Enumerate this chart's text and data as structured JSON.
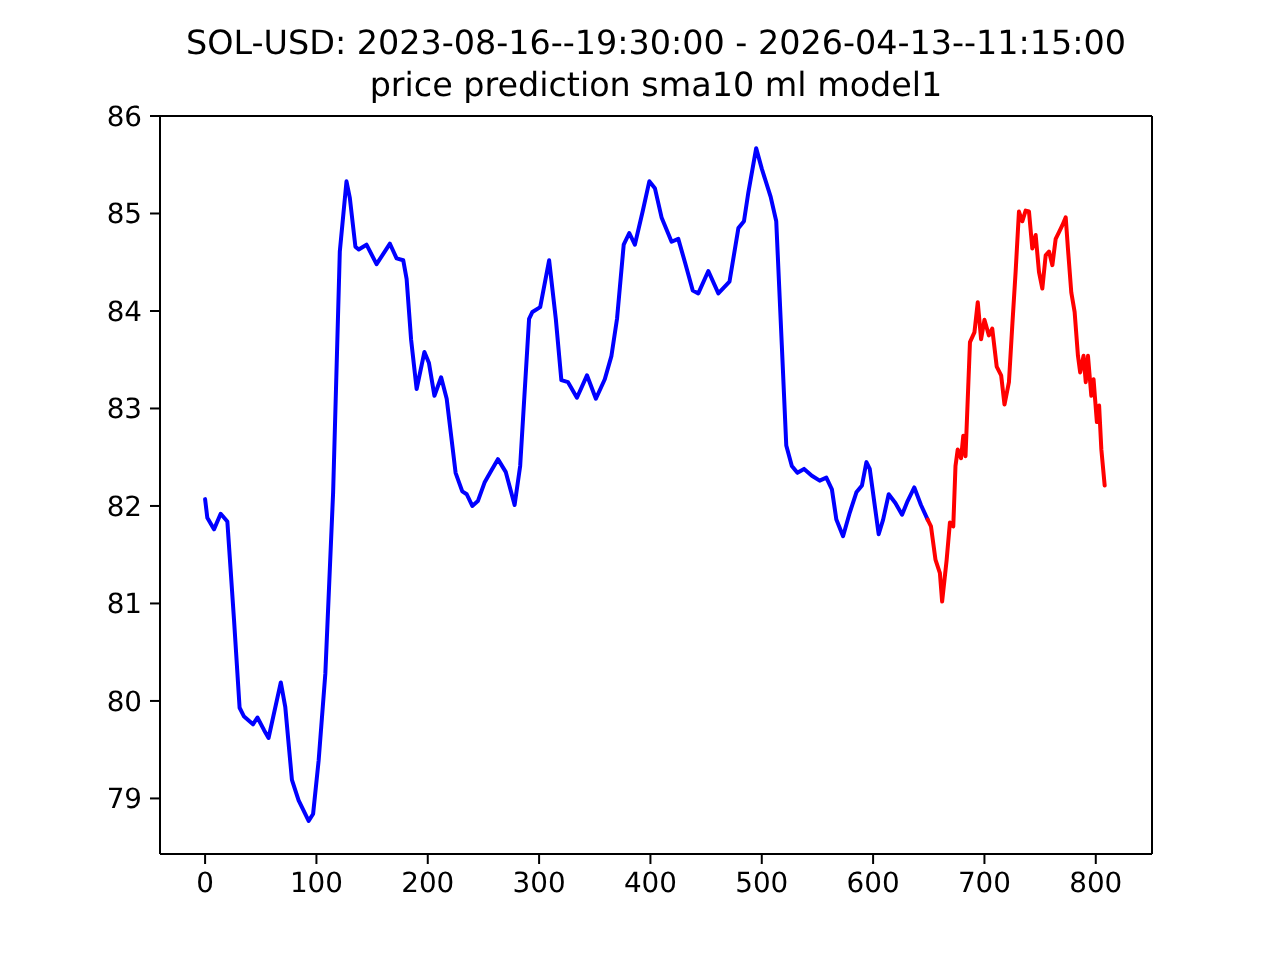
{
  "chart_data": {
    "type": "line",
    "title": "SOL-USD: 2023-08-16--19:30:00 - 2026-04-13--11:15:00",
    "subtitle": "price prediction sma10 ml model1",
    "xlim": [
      -40.5,
      850.5
    ],
    "xticks": [
      0,
      100,
      200,
      300,
      400,
      500,
      600,
      700,
      800
    ],
    "ylim": [
      78.43,
      86.0
    ],
    "yticks": [
      79,
      80,
      81,
      82,
      83,
      84,
      85,
      86
    ],
    "line_style": "solid",
    "series": [
      {
        "color": "#0000ff",
        "x": [
          0,
          2,
          8,
          14,
          20,
          26,
          31,
          35,
          43,
          47,
          53,
          57,
          68,
          72,
          78,
          84,
          93,
          97,
          102,
          108,
          115,
          121,
          127,
          130,
          135,
          138,
          145,
          154,
          166,
          172,
          178,
          181,
          185,
          190,
          197,
          201,
          206,
          212,
          217,
          225,
          231,
          235,
          240,
          245,
          251,
          257,
          263,
          270,
          278,
          283,
          291,
          294,
          301,
          309,
          315,
          320,
          326,
          334,
          343,
          351,
          359,
          365,
          370,
          376,
          381,
          386,
          393,
          399,
          404,
          410,
          419,
          425,
          431,
          438,
          443,
          452,
          461,
          471,
          479,
          484,
          488,
          495,
          500,
          508,
          513,
          518,
          522,
          527,
          532,
          538,
          545,
          552,
          558,
          563,
          567,
          573,
          579,
          585,
          590,
          594,
          597,
          605,
          609,
          614,
          620,
          626,
          631,
          637,
          643,
          649
        ],
        "values": [
          82.07,
          81.88,
          81.76,
          81.92,
          81.84,
          80.83,
          79.93,
          79.84,
          79.76,
          79.83,
          79.7,
          79.62,
          80.19,
          79.94,
          79.19,
          78.98,
          78.77,
          78.84,
          79.39,
          80.28,
          82.14,
          84.61,
          85.33,
          85.16,
          84.66,
          84.63,
          84.68,
          84.48,
          84.69,
          84.54,
          84.52,
          84.33,
          83.71,
          83.2,
          83.58,
          83.47,
          83.13,
          83.32,
          83.1,
          82.34,
          82.15,
          82.12,
          82.0,
          82.05,
          82.24,
          82.36,
          82.48,
          82.35,
          82.01,
          82.41,
          83.92,
          83.99,
          84.04,
          84.52,
          83.92,
          83.29,
          83.27,
          83.11,
          83.34,
          83.1,
          83.3,
          83.54,
          83.92,
          84.68,
          84.8,
          84.68,
          85.02,
          85.33,
          85.26,
          84.96,
          84.71,
          84.74,
          84.5,
          84.21,
          84.18,
          84.41,
          84.18,
          84.3,
          84.85,
          84.92,
          85.22,
          85.67,
          85.46,
          85.17,
          84.92,
          83.65,
          82.62,
          82.41,
          82.34,
          82.38,
          82.31,
          82.26,
          82.29,
          82.17,
          81.86,
          81.69,
          81.93,
          82.14,
          82.21,
          82.45,
          82.38,
          81.71,
          81.86,
          82.12,
          82.03,
          81.91,
          82.05,
          82.19,
          82.01,
          81.86
        ]
      },
      {
        "color": "#ff0000",
        "x": [
          649,
          652,
          656,
          660,
          662,
          666,
          669,
          672,
          674,
          676,
          679,
          681,
          683,
          687,
          691,
          694,
          697,
          700,
          704,
          707,
          711,
          715,
          718,
          722,
          725,
          728,
          731,
          734,
          737,
          740,
          743,
          746,
          749,
          752,
          755,
          758,
          761,
          764,
          767,
          770,
          773,
          775,
          778,
          781,
          784,
          786,
          789,
          791,
          793,
          796,
          798,
          801,
          803,
          805,
          808
        ],
        "values": [
          81.86,
          81.79,
          81.45,
          81.31,
          81.02,
          81.44,
          81.83,
          81.79,
          82.41,
          82.58,
          82.49,
          82.72,
          82.51,
          83.68,
          83.78,
          84.09,
          83.71,
          83.91,
          83.75,
          83.82,
          83.43,
          83.34,
          83.04,
          83.27,
          83.85,
          84.4,
          85.02,
          84.92,
          85.03,
          85.02,
          84.64,
          84.78,
          84.4,
          84.23,
          84.57,
          84.61,
          84.47,
          84.74,
          84.81,
          84.88,
          84.96,
          84.64,
          84.19,
          83.99,
          83.54,
          83.37,
          83.54,
          83.27,
          83.54,
          83.13,
          83.3,
          82.86,
          83.03,
          82.58,
          82.21
        ]
      }
    ]
  }
}
